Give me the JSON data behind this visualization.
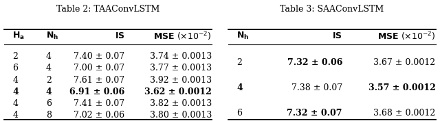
{
  "table2_title": "Table 2: TAAConvLSTM",
  "table2_rows": [
    [
      "2",
      "4",
      "7.40 ± 0.07",
      "3.74 ± 0.0013"
    ],
    [
      "6",
      "4",
      "7.00 ± 0.07",
      "3.77 ± 0.0013"
    ],
    [
      "4",
      "2",
      "7.61 ± 0.07",
      "3.92 ± 0.0013"
    ],
    [
      "4",
      "4",
      "6.91 ± 0.06",
      "3.62 ± 0.0012"
    ],
    [
      "4",
      "6",
      "7.41 ± 0.07",
      "3.82 ± 0.0013"
    ],
    [
      "4",
      "8",
      "7.02 ± 0.06",
      "3.80 ± 0.0013"
    ]
  ],
  "table2_bold_row": 3,
  "table3_title": "Table 3: SAAConvLSTM",
  "table3_rows": [
    [
      "2",
      "7.32 ± 0.06",
      "3.67 ± 0.0012"
    ],
    [
      "4",
      "7.38 ± 0.07",
      "3.57 ± 0.0012"
    ],
    [
      "6",
      "7.32 ± 0.07",
      "3.68 ± 0.0012"
    ]
  ],
  "table3_bold_IS": [
    0,
    2
  ],
  "table3_bold_MSE": [
    1
  ],
  "table3_bold_Nh": [
    1
  ],
  "fontsize": 9.0
}
